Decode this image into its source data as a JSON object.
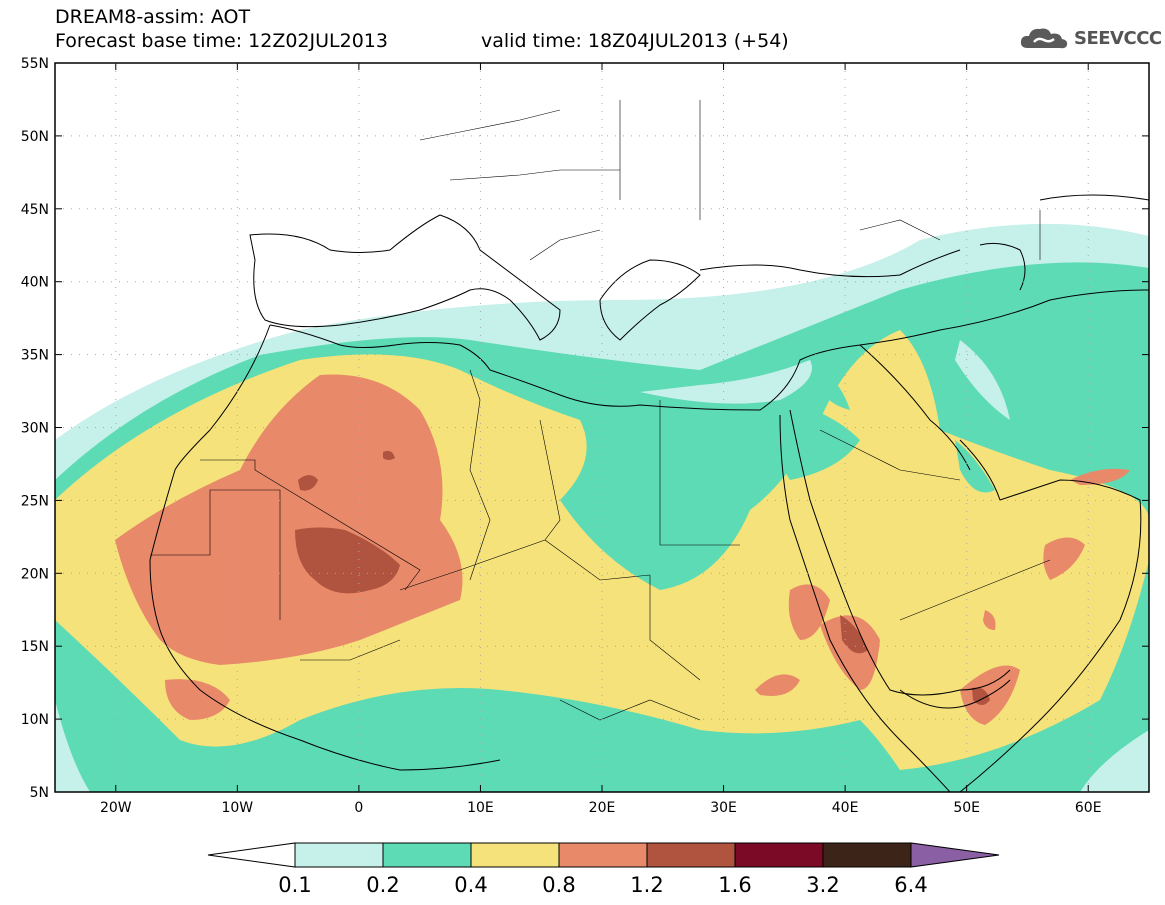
{
  "header": {
    "line1": "DREAM8-assim: AOT",
    "line2": "Forecast base time: 12Z02JUL2013",
    "valid": "valid time: 18Z04JUL2013 (+54)"
  },
  "logo": {
    "text": "SEEVCCC",
    "icon": "cloud-logo-icon"
  },
  "map": {
    "lat_labels": [
      "55N",
      "50N",
      "45N",
      "40N",
      "35N",
      "30N",
      "25N",
      "20N",
      "15N",
      "10N",
      "5N"
    ],
    "lon_labels": [
      "20W",
      "10W",
      "0",
      "10E",
      "20E",
      "30E",
      "40E",
      "50E",
      "60E"
    ],
    "lat_range": [
      5,
      55
    ],
    "lon_range": [
      -25,
      65
    ],
    "variable": "AOT"
  },
  "colorbar": {
    "labels": [
      "0.1",
      "0.2",
      "0.4",
      "0.8",
      "1.2",
      "1.6",
      "3.2",
      "6.4"
    ],
    "colors": [
      "#c6f0ea",
      "#5ddbb4",
      "#f5e27a",
      "#e8896a",
      "#b0533f",
      "#7a0a25",
      "#3d2418",
      "#8a5fa3"
    ],
    "under_color": "#ffffff"
  }
}
